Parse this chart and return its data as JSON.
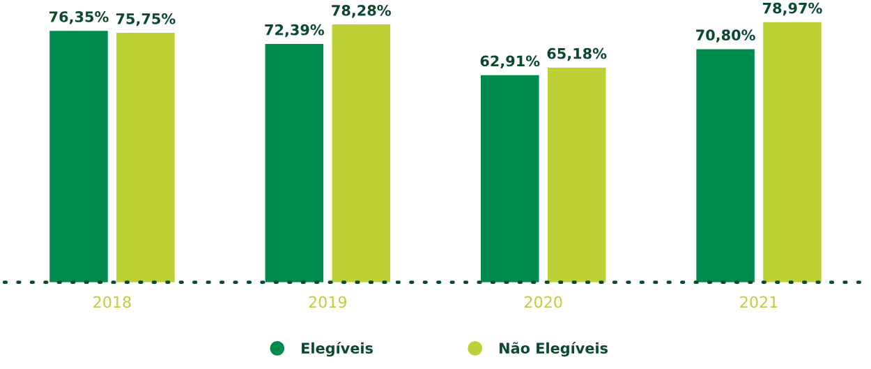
{
  "chart_data": {
    "type": "bar",
    "categories": [
      "2018",
      "2019",
      "2020",
      "2021"
    ],
    "series": [
      {
        "name": "Elegíveis",
        "color": "#008a4e",
        "values": [
          76.35,
          72.39,
          62.91,
          70.8
        ],
        "value_labels": [
          "76,35%",
          "72,39%",
          "62,91%",
          "70,80%"
        ]
      },
      {
        "name": "Não Elegíveis",
        "color": "#bcd135",
        "values": [
          75.75,
          78.28,
          65.18,
          78.97
        ],
        "value_labels": [
          "75,75%",
          "78,28%",
          "65,18%",
          "78,97%"
        ]
      }
    ],
    "legend": "bottom",
    "grid": false,
    "tick_labels": "x"
  }
}
